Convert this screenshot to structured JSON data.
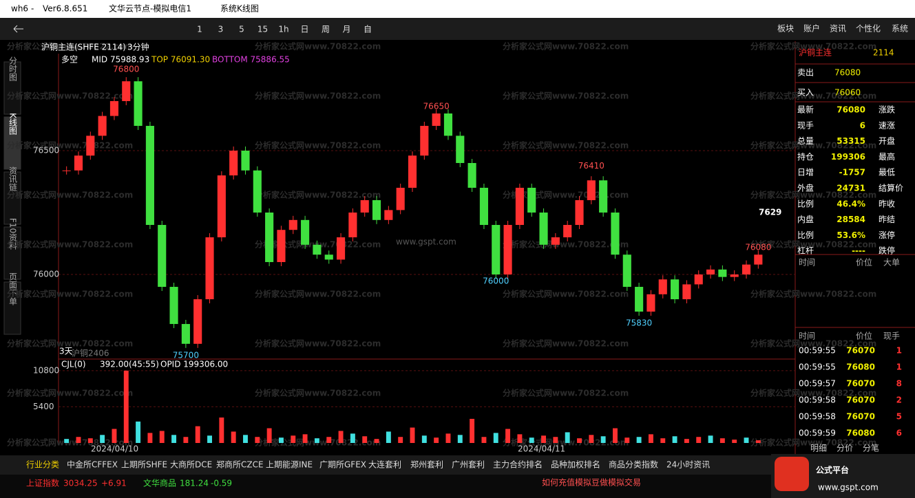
{
  "title_bar": {
    "app": "wh6",
    "separator": "-",
    "version": "Ver6.8.651",
    "server": "文华云节点-模拟电信1",
    "title": "系统K线图"
  },
  "toolbar": {
    "periods": [
      "1",
      "3",
      "5",
      "15",
      "1h",
      "日",
      "周",
      "月",
      "自"
    ],
    "menu": [
      "板块",
      "账户",
      "资讯",
      "个性化",
      "系统"
    ]
  },
  "side_tabs": [
    "分时图",
    "K线图",
    "资讯链",
    "F10资料",
    "页面下单"
  ],
  "chart_header": {
    "contract": "沪铜主连(SHFE 2114)",
    "period": "3分钟",
    "indicator": "多空",
    "mid": "MID 75988.93",
    "top": "TOP 76091.30",
    "bottom": "BOTTOM 75886.55"
  },
  "watermark": "分析家公式网www.70822.com",
  "site_mark": "www.gspt.com",
  "price_chart": {
    "ylim": [
      75664,
      76886
    ],
    "yticks": [
      76000,
      76500
    ],
    "closes": [
      76420,
      76480,
      76560,
      76640,
      76700,
      76780,
      76600,
      76200,
      75950,
      75800,
      75720,
      75900,
      76150,
      76400,
      76500,
      76420,
      76250,
      76050,
      76180,
      76220,
      76120,
      76080,
      76060,
      76150,
      76250,
      76300,
      76220,
      76260,
      76350,
      76480,
      76600,
      76650,
      76560,
      76450,
      76350,
      76200,
      76000,
      76200,
      76350,
      76250,
      76120,
      76150,
      76200,
      76300,
      76380,
      76250,
      76080,
      75950,
      75850,
      75920,
      75980,
      75900,
      75960,
      76000,
      76020,
      75990,
      76000,
      76040,
      76080
    ],
    "annotations": [
      {
        "label": "76800",
        "value": 76800,
        "index": 5
      },
      {
        "label": "76650",
        "value": 76650,
        "index": 31
      },
      {
        "label": "76410",
        "value": 76410,
        "index": 44
      },
      {
        "label": "76080",
        "value": 76080,
        "index": 58
      },
      {
        "label": "76000",
        "value": 76000,
        "index": 36
      },
      {
        "label": "75830",
        "value": 75830,
        "index": 48
      },
      {
        "label": "75700",
        "value": 75700,
        "index": 10
      }
    ],
    "cut_label": "7629",
    "contract_note": "3天",
    "contract_note2": "沪铜2406"
  },
  "volume_chart": {
    "ylim": [
      0,
      11500
    ],
    "yticks": [
      5400,
      10800
    ],
    "name": "CJL(0)",
    "value": "392.00(45:55)",
    "opid": "OPID 199306.00",
    "values": [
      600,
      900,
      700,
      1200,
      2100,
      10800,
      3200,
      1500,
      1800,
      1200,
      900,
      2500,
      1100,
      3800,
      1700,
      1200,
      900,
      2200,
      800,
      1100,
      1300,
      700,
      900,
      1800,
      1400,
      1000,
      600,
      1700,
      900,
      2300,
      1100,
      800,
      1400,
      1200,
      3600,
      900,
      1500,
      2100,
      1300,
      800,
      1100,
      900,
      1600,
      700,
      1200,
      1000,
      2200,
      800,
      900,
      1300,
      700,
      1000,
      600,
      900,
      1100,
      700,
      500,
      800,
      400
    ]
  },
  "x_labels": [
    "2024/04/10",
    "2024/04/11"
  ],
  "quote": {
    "name": "沪铜主连",
    "code": "2114",
    "sell_label": "卖出",
    "sell": "76080",
    "buy_label": "买入",
    "buy": "76060",
    "rows": [
      [
        "最新",
        "76080",
        "涨跌"
      ],
      [
        "现手",
        "6",
        "速涨"
      ],
      [
        "总量",
        "53315",
        "开盘"
      ],
      [
        "持仓",
        "199306",
        "最高"
      ],
      [
        "日增",
        "-1757",
        "最低"
      ],
      [
        "外盘",
        "24731",
        "结算价"
      ],
      [
        "比例",
        "46.4%",
        "昨收"
      ],
      [
        "内盘",
        "28584",
        "昨结"
      ],
      [
        "比例",
        "53.6%",
        "涨停"
      ],
      [
        "杠杆",
        "----",
        "跌停"
      ]
    ],
    "big_header": [
      "时间",
      "价位",
      "大单"
    ],
    "trade_header": [
      "时间",
      "价位",
      "现手"
    ],
    "trades": [
      [
        "00:59:55",
        "76070",
        "1"
      ],
      [
        "00:59:55",
        "76080",
        "1"
      ],
      [
        "00:59:57",
        "76070",
        "8"
      ],
      [
        "00:59:58",
        "76070",
        "2"
      ],
      [
        "00:59:58",
        "76070",
        "5"
      ],
      [
        "00:59:59",
        "76080",
        "6"
      ]
    ],
    "tabs": [
      "明细",
      "分价",
      "分笔"
    ]
  },
  "bottom_tabs": [
    "行业分类",
    "中金所CFFEX",
    "上期所SHFE",
    "大商所DCE",
    "郑商所CZCE",
    "上期能源INE",
    "广期所GFEX",
    "大连套利",
    "郑州套利",
    "广州套利",
    "主力合约排名",
    "品种加权排名",
    "商品分类指数",
    "24小时资讯"
  ],
  "index_bar": {
    "sh_name": "上证指数",
    "sh_value": "3034.25",
    "sh_change": "+6.91",
    "wh_name": "文华商品",
    "wh_value": "181.24",
    "wh_change": "-0.59",
    "promo": "如何充值模拟豆做模拟交易"
  },
  "logo": {
    "name": "公式平台",
    "url": "www.gspt.com"
  }
}
